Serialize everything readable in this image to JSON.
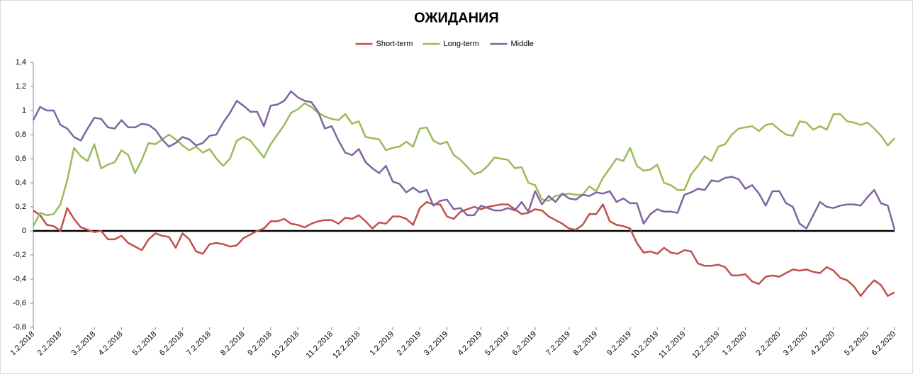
{
  "chart_data": {
    "type": "line",
    "title": "ОЖИДАНИЯ",
    "legend": "top",
    "grid": false,
    "categories": [
      "1.2.2018",
      null,
      null,
      null,
      "2.2.2018",
      null,
      null,
      null,
      null,
      "3.2.2018",
      null,
      null,
      null,
      "4.2.2018",
      null,
      null,
      null,
      null,
      "5.2.2018",
      null,
      null,
      null,
      "6.2.2018",
      null,
      null,
      null,
      "7.2.2018",
      null,
      null,
      null,
      null,
      "8.2.2018",
      null,
      null,
      null,
      "9.2.2018",
      null,
      null,
      null,
      "10.2.2018",
      null,
      null,
      null,
      null,
      "11.2.2018",
      null,
      null,
      null,
      "12.2.2018",
      null,
      null,
      null,
      null,
      "1.2.2019",
      null,
      null,
      null,
      "2.2.2019",
      null,
      null,
      null,
      "3.2.2019",
      null,
      null,
      null,
      null,
      "4.2.2019",
      null,
      null,
      null,
      "5.2.2019",
      null,
      null,
      null,
      "6.2.2019",
      null,
      null,
      null,
      null,
      "7.2.2019",
      null,
      null,
      null,
      "8.2.2019",
      null,
      null,
      null,
      null,
      "9.2.2019",
      null,
      null,
      null,
      "10.2.2019",
      null,
      null,
      null,
      "11.2.2019",
      null,
      null,
      null,
      null,
      "12.2.2019",
      null,
      null,
      null,
      "1.2.2020",
      null,
      null,
      null,
      null,
      "2.2.2020",
      null,
      null,
      null,
      "3.2.2020",
      null,
      null,
      null,
      "4.2.2020",
      null,
      null,
      null,
      null,
      "5.2.2020",
      null,
      null,
      null,
      "6.2.2020"
    ],
    "ylim": [
      -0.8,
      1.4
    ],
    "yticks": [
      {
        "value": -0.8,
        "label": "-0,8"
      },
      {
        "value": -0.6,
        "label": "-0,6"
      },
      {
        "value": -0.4,
        "label": "-0,4"
      },
      {
        "value": -0.2,
        "label": "-0,2"
      },
      0,
      {
        "value": 0.2,
        "label": "0,2"
      },
      {
        "value": 0.4,
        "label": "0,4"
      },
      {
        "value": 0.6,
        "label": "0,6"
      },
      {
        "value": 0.8,
        "label": "0,8"
      },
      1,
      {
        "value": 1.2,
        "label": "1,2"
      },
      {
        "value": 1.4,
        "label": "1,4"
      }
    ],
    "series": [
      {
        "name": "Short-term",
        "color": "#c0504d",
        "values": [
          0.17,
          0.13,
          0.05,
          0.04,
          0.0,
          0.19,
          0.1,
          0.03,
          0.01,
          -0.01,
          0.0,
          -0.07,
          -0.07,
          -0.04,
          -0.1,
          -0.13,
          -0.16,
          -0.07,
          -0.02,
          -0.04,
          -0.05,
          -0.14,
          -0.02,
          -0.07,
          -0.17,
          -0.19,
          -0.11,
          -0.1,
          -0.11,
          -0.13,
          -0.12,
          -0.06,
          -0.03,
          0.0,
          0.02,
          0.08,
          0.08,
          0.1,
          0.06,
          0.05,
          0.03,
          0.06,
          0.08,
          0.09,
          0.09,
          0.06,
          0.11,
          0.1,
          0.13,
          0.08,
          0.02,
          0.07,
          0.06,
          0.12,
          0.12,
          0.1,
          0.05,
          0.19,
          0.24,
          0.22,
          0.22,
          0.12,
          0.1,
          0.16,
          0.18,
          0.2,
          0.18,
          0.2,
          0.21,
          0.22,
          0.22,
          0.18,
          0.14,
          0.15,
          0.18,
          0.17,
          0.12,
          0.09,
          0.06,
          0.02,
          0.01,
          0.05,
          0.14,
          0.14,
          0.22,
          0.08,
          0.05,
          0.04,
          0.02,
          -0.1,
          -0.18,
          -0.17,
          -0.19,
          -0.14,
          -0.18,
          -0.19,
          -0.16,
          -0.17,
          -0.27,
          -0.29,
          -0.29,
          -0.28,
          -0.3,
          -0.37,
          -0.37,
          -0.36,
          -0.42,
          -0.44,
          -0.38,
          -0.37,
          -0.38,
          -0.35,
          -0.32,
          -0.33,
          -0.32,
          -0.34,
          -0.35,
          -0.3,
          -0.33,
          -0.39,
          -0.41,
          -0.46,
          -0.54,
          -0.47,
          -0.41,
          -0.45,
          -0.54,
          -0.51
        ]
      },
      {
        "name": "Long-term",
        "color": "#9bbb59",
        "values": [
          0.04,
          0.15,
          0.13,
          0.14,
          0.22,
          0.42,
          0.69,
          0.62,
          0.58,
          0.72,
          0.52,
          0.55,
          0.57,
          0.67,
          0.63,
          0.48,
          0.59,
          0.73,
          0.72,
          0.76,
          0.8,
          0.76,
          0.71,
          0.67,
          0.7,
          0.65,
          0.68,
          0.6,
          0.54,
          0.6,
          0.75,
          0.78,
          0.75,
          0.68,
          0.61,
          0.72,
          0.8,
          0.88,
          0.98,
          1.01,
          1.06,
          1.03,
          0.98,
          0.95,
          0.93,
          0.92,
          0.97,
          0.89,
          0.91,
          0.78,
          0.77,
          0.76,
          0.67,
          0.69,
          0.7,
          0.74,
          0.7,
          0.85,
          0.86,
          0.75,
          0.72,
          0.74,
          0.63,
          0.59,
          0.53,
          0.47,
          0.49,
          0.54,
          0.61,
          0.6,
          0.59,
          0.52,
          0.53,
          0.4,
          0.38,
          0.26,
          0.25,
          0.29,
          0.3,
          0.31,
          0.3,
          0.3,
          0.37,
          0.33,
          0.44,
          0.52,
          0.6,
          0.58,
          0.69,
          0.54,
          0.5,
          0.51,
          0.55,
          0.4,
          0.38,
          0.34,
          0.34,
          0.47,
          0.54,
          0.62,
          0.58,
          0.7,
          0.72,
          0.8,
          0.85,
          0.86,
          0.87,
          0.83,
          0.88,
          0.89,
          0.84,
          0.8,
          0.79,
          0.91,
          0.9,
          0.84,
          0.87,
          0.84,
          0.97,
          0.97,
          0.91,
          0.9,
          0.88,
          0.9,
          0.85,
          0.79,
          0.71,
          0.77
        ]
      },
      {
        "name": "Middle",
        "color": "#8064a2",
        "values": [
          0.92,
          1.03,
          1.0,
          1.0,
          0.88,
          0.85,
          0.78,
          0.75,
          0.85,
          0.94,
          0.93,
          0.86,
          0.85,
          0.92,
          0.86,
          0.86,
          0.89,
          0.88,
          0.84,
          0.76,
          0.7,
          0.73,
          0.78,
          0.76,
          0.71,
          0.73,
          0.79,
          0.8,
          0.9,
          0.98,
          1.08,
          1.04,
          0.99,
          0.99,
          0.87,
          1.04,
          1.05,
          1.08,
          1.16,
          1.11,
          1.08,
          1.07,
          0.99,
          0.85,
          0.87,
          0.75,
          0.65,
          0.63,
          0.68,
          0.57,
          0.52,
          0.48,
          0.54,
          0.41,
          0.39,
          0.32,
          0.36,
          0.32,
          0.34,
          0.21,
          0.25,
          0.26,
          0.18,
          0.19,
          0.13,
          0.13,
          0.21,
          0.19,
          0.17,
          0.17,
          0.19,
          0.17,
          0.24,
          0.16,
          0.33,
          0.22,
          0.29,
          0.24,
          0.31,
          0.27,
          0.26,
          0.3,
          0.29,
          0.32,
          0.31,
          0.33,
          0.24,
          0.27,
          0.23,
          0.23,
          0.06,
          0.14,
          0.18,
          0.16,
          0.16,
          0.15,
          0.3,
          0.32,
          0.35,
          0.34,
          0.42,
          0.41,
          0.44,
          0.45,
          0.43,
          0.35,
          0.38,
          0.31,
          0.21,
          0.33,
          0.33,
          0.23,
          0.2,
          0.06,
          0.02,
          0.13,
          0.24,
          0.2,
          0.19,
          0.21,
          0.22,
          0.22,
          0.21,
          0.28,
          0.34,
          0.23,
          0.21,
          0.01
        ]
      }
    ]
  }
}
